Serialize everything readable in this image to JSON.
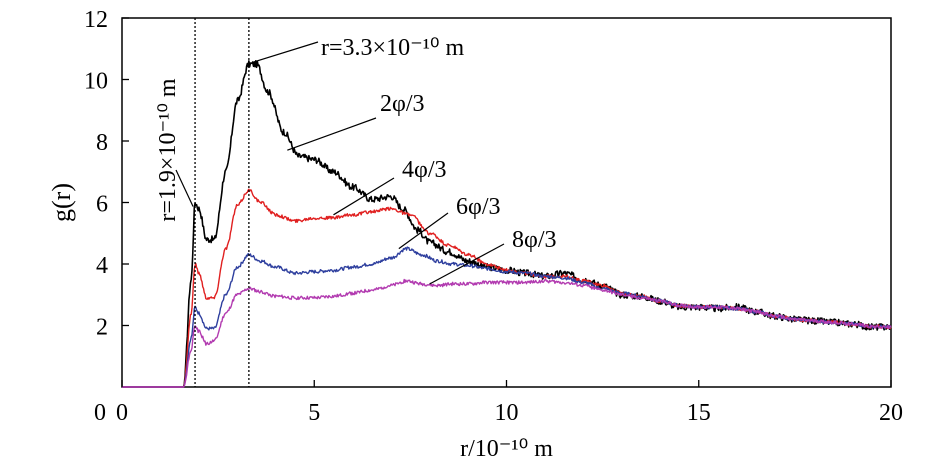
{
  "chart_data": {
    "type": "line",
    "xlabel": "r/10⁻¹⁰ m",
    "ylabel": "g(r)",
    "xlim": [
      0,
      20
    ],
    "ylim": [
      0,
      12
    ],
    "xticks": [
      0,
      5,
      10,
      15,
      20
    ],
    "yticks": [
      2,
      4,
      6,
      8,
      10,
      12
    ],
    "grid": false,
    "vertical_markers": [
      {
        "x": 1.9,
        "label": "r=1.9×10⁻¹⁰ m"
      },
      {
        "x": 3.3,
        "label": "r=3.3×10⁻¹⁰ m"
      }
    ],
    "series": [
      {
        "name": "2φ/3",
        "color": "#000000",
        "x": [
          0,
          1.6,
          1.8,
          1.9,
          2.0,
          2.2,
          2.4,
          2.7,
          3.0,
          3.3,
          3.5,
          3.8,
          4.2,
          4.6,
          5.0,
          5.5,
          6.0,
          6.5,
          7.0,
          7.3,
          7.7,
          8.0,
          8.5,
          9.0,
          9.5,
          10.0,
          10.5,
          11.0,
          11.5,
          12.0,
          12.5,
          13.0,
          13.5,
          14.0,
          14.5,
          15.0,
          15.5,
          16.0,
          16.5,
          17.0,
          17.5,
          18.0,
          18.5,
          19.0,
          19.5,
          20.0
        ],
        "y": [
          0,
          0,
          3.5,
          6.0,
          5.8,
          4.8,
          4.8,
          7.0,
          9.3,
          10.5,
          10.5,
          9.6,
          8.3,
          7.5,
          7.4,
          7.0,
          6.5,
          6.1,
          6.2,
          5.8,
          5.1,
          4.7,
          4.4,
          4.1,
          3.9,
          3.8,
          3.7,
          3.6,
          3.7,
          3.5,
          3.3,
          3.0,
          2.95,
          2.8,
          2.6,
          2.6,
          2.55,
          2.6,
          2.45,
          2.3,
          2.2,
          2.15,
          2.1,
          2.05,
          1.95,
          1.95
        ]
      },
      {
        "name": "4φ/3",
        "color": "#e02020",
        "x": [
          0,
          1.6,
          1.8,
          1.9,
          2.0,
          2.2,
          2.4,
          2.7,
          3.0,
          3.3,
          3.6,
          4.0,
          4.5,
          5.0,
          5.5,
          6.0,
          6.5,
          7.0,
          7.5,
          8.0,
          8.5,
          9.0,
          9.5,
          10.0,
          10.5,
          11.0,
          11.5,
          12.0,
          12.5,
          13.0,
          13.5,
          14.0,
          14.5,
          15.0,
          15.5,
          16.0,
          16.5,
          17.0,
          17.5,
          18.0,
          18.5,
          19.0,
          19.5,
          20.0
        ],
        "y": [
          0,
          0,
          2.4,
          4.0,
          3.7,
          2.9,
          2.9,
          4.5,
          5.9,
          6.4,
          6.0,
          5.6,
          5.4,
          5.5,
          5.5,
          5.6,
          5.7,
          5.8,
          5.6,
          5.0,
          4.6,
          4.3,
          4.0,
          3.8,
          3.7,
          3.6,
          3.6,
          3.45,
          3.3,
          3.05,
          2.95,
          2.8,
          2.65,
          2.6,
          2.6,
          2.55,
          2.45,
          2.3,
          2.2,
          2.15,
          2.1,
          2.05,
          1.97,
          1.95
        ]
      },
      {
        "name": "6φ/3",
        "color": "#2e3f9e",
        "x": [
          0,
          1.6,
          1.8,
          1.9,
          2.0,
          2.2,
          2.4,
          2.7,
          3.0,
          3.3,
          3.6,
          4.0,
          4.5,
          5.0,
          5.5,
          6.0,
          6.5,
          7.0,
          7.4,
          7.8,
          8.2,
          8.6,
          9.0,
          9.5,
          10.0,
          10.5,
          11.0,
          11.5,
          12.0,
          12.5,
          13.0,
          13.5,
          14.0,
          14.5,
          15.0,
          15.5,
          16.0,
          16.5,
          17.0,
          17.5,
          18.0,
          18.5,
          19.0,
          19.5,
          20.0
        ],
        "y": [
          0,
          0,
          1.6,
          2.6,
          2.4,
          1.9,
          1.9,
          3.0,
          3.9,
          4.3,
          4.1,
          3.9,
          3.7,
          3.75,
          3.8,
          3.9,
          4.0,
          4.2,
          4.5,
          4.3,
          4.1,
          4.0,
          3.95,
          3.85,
          3.75,
          3.7,
          3.6,
          3.55,
          3.4,
          3.2,
          3.05,
          2.95,
          2.8,
          2.65,
          2.6,
          2.6,
          2.55,
          2.45,
          2.3,
          2.2,
          2.15,
          2.1,
          2.05,
          1.97,
          1.95
        ]
      },
      {
        "name": "8φ/3",
        "color": "#b23bb0",
        "x": [
          0,
          1.6,
          1.8,
          1.9,
          2.0,
          2.2,
          2.4,
          2.7,
          3.0,
          3.3,
          3.6,
          4.0,
          4.5,
          5.0,
          5.5,
          6.0,
          6.5,
          7.0,
          7.4,
          7.8,
          8.2,
          8.6,
          9.0,
          9.5,
          10.0,
          10.5,
          11.0,
          11.5,
          12.0,
          12.5,
          13.0,
          13.5,
          14.0,
          14.5,
          15.0,
          15.5,
          16.0,
          16.5,
          17.0,
          17.5,
          18.0,
          18.5,
          19.0,
          19.5,
          20.0
        ],
        "y": [
          0,
          0,
          1.2,
          2.0,
          1.8,
          1.4,
          1.5,
          2.4,
          3.0,
          3.2,
          3.1,
          2.95,
          2.9,
          2.9,
          2.95,
          3.05,
          3.15,
          3.3,
          3.45,
          3.35,
          3.3,
          3.35,
          3.35,
          3.4,
          3.4,
          3.4,
          3.45,
          3.4,
          3.3,
          3.15,
          3.0,
          2.9,
          2.8,
          2.65,
          2.6,
          2.6,
          2.55,
          2.45,
          2.3,
          2.2,
          2.15,
          2.1,
          2.05,
          1.97,
          1.95
        ]
      }
    ],
    "annotations": [
      {
        "text": "r=3.3×10⁻¹⁰ m",
        "target": [
          3.3,
          10.6
        ]
      },
      {
        "text": "2φ/3",
        "target": [
          4.2,
          7.7
        ]
      },
      {
        "text": "4φ/3",
        "target": [
          5.5,
          5.55
        ]
      },
      {
        "text": "6φ/3",
        "target": [
          6.8,
          4.35
        ]
      },
      {
        "text": "8φ/3",
        "target": [
          8.2,
          3.25
        ]
      }
    ]
  }
}
